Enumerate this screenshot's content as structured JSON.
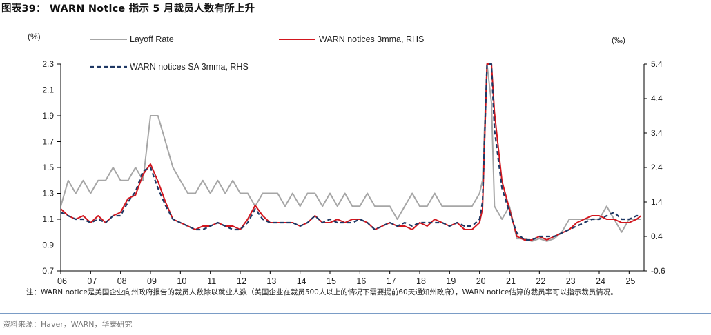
{
  "header": {
    "title": "图表39：  WARN Notice 指示 5 月裁员人数有所上升"
  },
  "footer": {
    "note": "注：WARN notice是美国企业向州政府报告的裁员人数除以就业人数（美国企业在裁员500人以上的情况下需要提前60天通知州政府），WARN notice估算的裁员率可以指示裁员情况。",
    "source": "资料来源：Haver，WARN，华泰研究"
  },
  "chart_data": {
    "type": "line",
    "title": "WARN Notice 指示 5 月裁员人数有所上升",
    "ylabel": "(%)",
    "y2label": "(‰)",
    "ylim": [
      0.7,
      2.3
    ],
    "y2lim": [
      -0.6,
      5.4
    ],
    "yticks": [
      "2.3",
      "2.1",
      "1.9",
      "1.7",
      "1.5",
      "1.3",
      "1.1",
      "0.9",
      "0.7"
    ],
    "y2ticks": [
      "5.4",
      "4.4",
      "3.4",
      "2.4",
      "1.4",
      "0.4",
      "-0.6"
    ],
    "xlim": [
      2006.0,
      2025.5
    ],
    "xticks": [
      "06",
      "07",
      "08",
      "09",
      "10",
      "11",
      "12",
      "13",
      "14",
      "15",
      "16",
      "17",
      "18",
      "19",
      "20",
      "21",
      "22",
      "23",
      "24",
      "25"
    ],
    "x": [
      2006.0,
      2006.25,
      2006.5,
      2006.75,
      2007.0,
      2007.25,
      2007.5,
      2007.75,
      2008.0,
      2008.25,
      2008.5,
      2008.75,
      2009.0,
      2009.25,
      2009.5,
      2009.75,
      2010.0,
      2010.25,
      2010.5,
      2010.75,
      2011.0,
      2011.25,
      2011.5,
      2011.75,
      2012.0,
      2012.25,
      2012.5,
      2012.75,
      2013.0,
      2013.25,
      2013.5,
      2013.75,
      2014.0,
      2014.25,
      2014.5,
      2014.75,
      2015.0,
      2015.25,
      2015.5,
      2015.75,
      2016.0,
      2016.25,
      2016.5,
      2016.75,
      2017.0,
      2017.25,
      2017.5,
      2017.75,
      2018.0,
      2018.25,
      2018.5,
      2018.75,
      2019.0,
      2019.25,
      2019.5,
      2019.75,
      2020.0,
      2020.1,
      2020.25,
      2020.4,
      2020.5,
      2020.75,
      2021.0,
      2021.25,
      2021.5,
      2021.75,
      2022.0,
      2022.25,
      2022.5,
      2022.75,
      2023.0,
      2023.25,
      2023.5,
      2023.75,
      2024.0,
      2024.25,
      2024.5,
      2024.75,
      2025.0,
      2025.25,
      2025.4
    ],
    "series": [
      {
        "name": "Layoff Rate",
        "axis": "left",
        "color": "#a6a6a6",
        "values": [
          1.2,
          1.4,
          1.3,
          1.4,
          1.3,
          1.4,
          1.4,
          1.5,
          1.4,
          1.4,
          1.5,
          1.4,
          1.9,
          1.9,
          1.7,
          1.5,
          1.4,
          1.3,
          1.3,
          1.4,
          1.3,
          1.4,
          1.3,
          1.4,
          1.3,
          1.3,
          1.2,
          1.3,
          1.3,
          1.3,
          1.2,
          1.3,
          1.2,
          1.3,
          1.3,
          1.2,
          1.3,
          1.2,
          1.3,
          1.2,
          1.2,
          1.3,
          1.2,
          1.2,
          1.2,
          1.1,
          1.2,
          1.3,
          1.2,
          1.2,
          1.3,
          1.2,
          1.2,
          1.2,
          1.2,
          1.2,
          1.3,
          1.4,
          2.3,
          2.0,
          1.2,
          1.1,
          1.2,
          0.95,
          0.95,
          0.93,
          0.95,
          0.93,
          0.95,
          1.0,
          1.1,
          1.1,
          1.1,
          1.1,
          1.1,
          1.2,
          1.1,
          1.0,
          1.1,
          1.1,
          1.1
        ]
      },
      {
        "name": "WARN notices 3mma, RHS",
        "axis": "right",
        "color": "#d2161e",
        "values": [
          1.2,
          1.0,
          0.9,
          1.0,
          0.8,
          1.0,
          0.8,
          1.0,
          1.1,
          1.5,
          1.6,
          2.2,
          2.5,
          2.0,
          1.4,
          0.9,
          0.8,
          0.7,
          0.6,
          0.7,
          0.7,
          0.8,
          0.7,
          0.7,
          0.6,
          0.9,
          1.3,
          1.0,
          0.8,
          0.8,
          0.8,
          0.8,
          0.7,
          0.8,
          1.0,
          0.8,
          0.8,
          0.9,
          0.8,
          0.9,
          0.9,
          0.8,
          0.6,
          0.7,
          0.8,
          0.7,
          0.7,
          0.6,
          0.8,
          0.7,
          0.9,
          0.8,
          0.7,
          0.8,
          0.6,
          0.6,
          0.8,
          1.2,
          5.4,
          5.4,
          4.0,
          2.0,
          1.2,
          0.4,
          0.3,
          0.3,
          0.4,
          0.3,
          0.4,
          0.5,
          0.6,
          0.8,
          0.9,
          1.0,
          1.0,
          0.9,
          0.9,
          0.8,
          0.8,
          0.9,
          1.0
        ]
      },
      {
        "name": "WARN notices SA 3mma, RHS",
        "axis": "right",
        "color": "#1f3864",
        "values": [
          1.1,
          1.0,
          0.9,
          0.9,
          0.8,
          0.9,
          0.8,
          1.0,
          1.0,
          1.4,
          1.7,
          2.3,
          2.4,
          1.8,
          1.3,
          0.9,
          0.8,
          0.7,
          0.6,
          0.6,
          0.7,
          0.8,
          0.7,
          0.6,
          0.6,
          0.8,
          1.2,
          0.9,
          0.8,
          0.8,
          0.8,
          0.8,
          0.7,
          0.8,
          1.0,
          0.8,
          0.9,
          0.8,
          0.8,
          0.8,
          0.9,
          0.8,
          0.6,
          0.7,
          0.8,
          0.7,
          0.8,
          0.7,
          0.8,
          0.8,
          0.8,
          0.8,
          0.7,
          0.8,
          0.7,
          0.7,
          0.9,
          1.4,
          5.4,
          5.4,
          3.5,
          1.8,
          1.1,
          0.5,
          0.3,
          0.3,
          0.4,
          0.4,
          0.4,
          0.5,
          0.6,
          0.7,
          0.8,
          0.9,
          0.9,
          1.0,
          1.1,
          0.9,
          0.9,
          1.0,
          1.0
        ]
      }
    ]
  }
}
